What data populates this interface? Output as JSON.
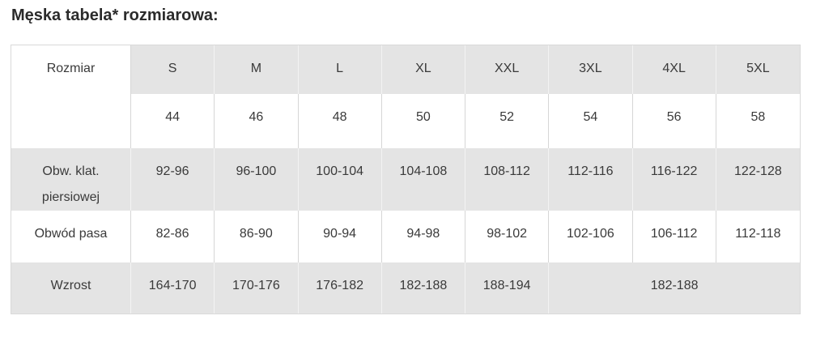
{
  "title": "Męska tabela* rozmiarowa:",
  "table": {
    "corner_label": "Rozmiar",
    "size_labels": [
      "S",
      "M",
      "L",
      "XL",
      "XXL",
      "3XL",
      "4XL",
      "5XL"
    ],
    "numeric_sizes": [
      "44",
      "46",
      "48",
      "50",
      "52",
      "54",
      "56",
      "58"
    ],
    "rows": [
      {
        "label": "Obw. klat. piersiowej",
        "values": [
          "92-96",
          "96-100",
          "100-104",
          "104-108",
          "108-112",
          "112-116",
          "116-122",
          "122-128"
        ]
      },
      {
        "label": "Obwód pasa",
        "values": [
          "82-86",
          "86-90",
          "90-94",
          "94-98",
          "98-102",
          "102-106",
          "106-112",
          "112-118"
        ]
      },
      {
        "label": "Wzrost",
        "values": [
          "164-170",
          "170-176",
          "176-182",
          "182-188",
          "188-194"
        ],
        "merged_value": "182-188",
        "merged_span": 3
      }
    ]
  },
  "colors": {
    "shaded_cell_bg": "#e4e4e4",
    "separator_on_white": "#d6d6d6",
    "separator_on_gray": "#f3f3f3",
    "table_border": "#d9d9d9",
    "title_text": "#2b2b2b",
    "cell_text": "#3a3a3a"
  }
}
